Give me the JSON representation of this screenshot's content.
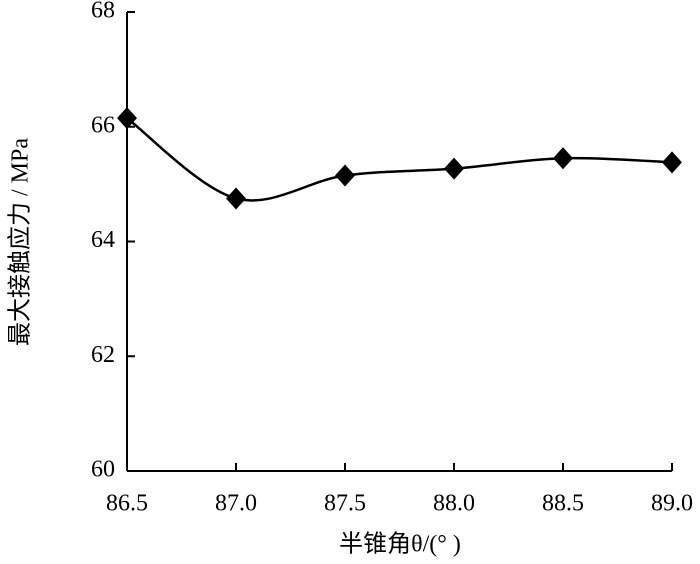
{
  "chart_data": {
    "type": "line",
    "x_label": "半锥角θ/(°  )",
    "y_label": "最大接触应力 / MPa",
    "x": [
      86.5,
      87.0,
      87.5,
      88.0,
      88.5,
      89.0
    ],
    "series": [
      {
        "color": "#000000",
        "values": [
          66.15,
          64.75,
          65.15,
          65.27,
          65.45,
          65.38
        ]
      }
    ],
    "xlim": [
      86.5,
      89.0
    ],
    "xticks": [
      86.5,
      {
        "value": 87,
        "label": "87.0"
      },
      87.5,
      {
        "value": 88,
        "label": "88.0"
      },
      88.5,
      {
        "value": 89,
        "label": "89.0"
      }
    ],
    "ylim": [
      60,
      68
    ],
    "yticks": [
      60,
      62,
      64,
      66,
      68
    ]
  }
}
